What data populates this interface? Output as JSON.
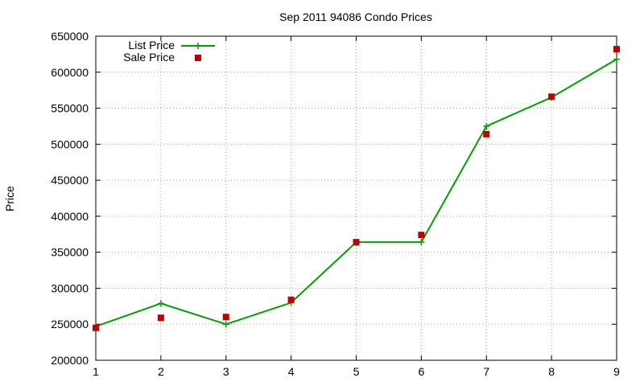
{
  "chart_data": {
    "type": "line",
    "title": "Sep 2011 94086 Condo Prices",
    "xlabel": "",
    "ylabel": "Price",
    "x": [
      1,
      2,
      3,
      4,
      5,
      6,
      7,
      8,
      9
    ],
    "xlim": [
      1,
      9
    ],
    "ylim": [
      200000,
      650000
    ],
    "xticks": [
      "1",
      "2",
      "3",
      "4",
      "5",
      "6",
      "7",
      "8",
      "9"
    ],
    "yticks": [
      "200000",
      "250000",
      "300000",
      "350000",
      "400000",
      "450000",
      "500000",
      "550000",
      "600000",
      "650000"
    ],
    "grid": true,
    "legend_position": "top-left",
    "series": [
      {
        "name": "List Price",
        "style": "line-with-plus-markers",
        "color": "#00a000",
        "values": [
          247000,
          279000,
          250000,
          280000,
          364000,
          364000,
          525000,
          565000,
          618000
        ]
      },
      {
        "name": "Sale Price",
        "style": "square-markers",
        "color": "#c00000",
        "values": [
          245000,
          259000,
          260000,
          284000,
          364000,
          374000,
          514000,
          566000,
          632000
        ]
      }
    ]
  }
}
